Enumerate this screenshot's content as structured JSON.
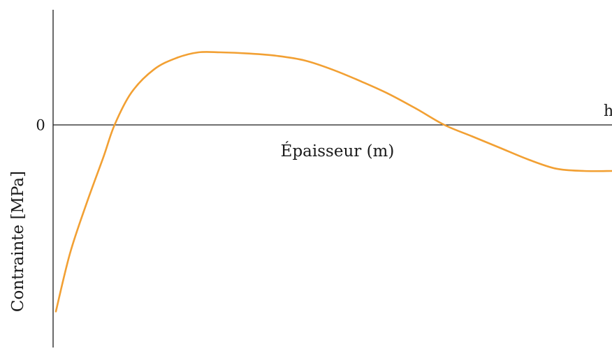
{
  "chart_data": {
    "type": "line",
    "title": "",
    "xlabel": "Épaisseur (m)",
    "ylabel": "Contrainte [MPa]",
    "zero_label": "0",
    "x_end_label": "h",
    "xlim": [
      0,
      1
    ],
    "ylim": [
      -1,
      0.55
    ],
    "grid": false,
    "legend": "none",
    "series": [
      {
        "color": "#f2a033",
        "x": [
          0.005,
          0.03,
          0.06,
          0.09,
          0.11,
          0.14,
          0.18,
          0.22,
          0.26,
          0.3,
          0.35,
          0.4,
          0.45,
          0.5,
          0.55,
          0.6,
          0.65,
          0.7,
          0.75,
          0.8,
          0.85,
          0.9,
          0.95,
          1.0
        ],
        "y": [
          -0.81,
          -0.56,
          -0.34,
          -0.14,
          0.0,
          0.14,
          0.24,
          0.29,
          0.315,
          0.315,
          0.31,
          0.3,
          0.28,
          0.24,
          0.19,
          0.135,
          0.07,
          0.0,
          -0.05,
          -0.1,
          -0.15,
          -0.19,
          -0.2,
          -0.2
        ]
      }
    ]
  }
}
